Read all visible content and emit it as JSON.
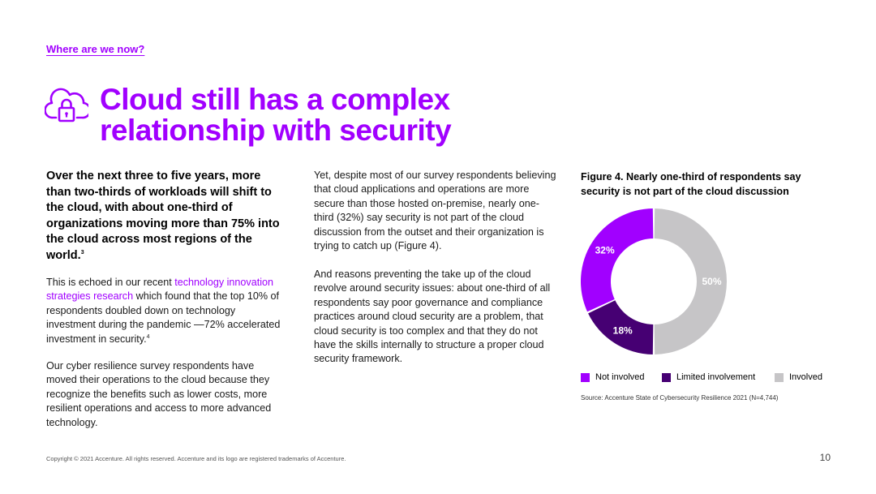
{
  "header": {
    "section_link": "Where are we now?",
    "title_line1": "Cloud still has a complex",
    "title_line2": "relationship with security",
    "icon": "cloud-lock-icon"
  },
  "left_column": {
    "lead_text": "Over the next three to five years, more than two-thirds of workloads will shift to the cloud, with about one-third of organizations moving more than 75% into the cloud across most regions of the world.",
    "lead_footnote": "3",
    "para1_before": "This is echoed in our recent ",
    "para1_link": "technology innovation strategies research",
    "para1_after": " which found that the top 10% of respondents doubled down on technology investment during the pandemic —72% accelerated investment in security.",
    "para1_footnote": "4",
    "para2": "Our cyber resilience survey respondents have moved their operations to the cloud because they recognize the benefits such as lower costs, more resilient operations and access to more advanced technology."
  },
  "middle_column": {
    "para1": "Yet, despite most of our survey respondents believing that cloud applications and operations are more secure than those hosted on-premise, nearly one-third (32%) say security is not part of the cloud discussion from the outset and their organization is trying to catch up (Figure 4).",
    "para2": "And reasons preventing the take up of the cloud revolve around security issues: about one-third of all respondents say poor governance and compliance practices around cloud security are a problem, that cloud security is too complex and that they do not have the skills internally to structure a proper cloud security framework."
  },
  "figure": {
    "title": "Figure 4. Nearly one-third of respondents say security is not part of the cloud discussion",
    "source": "Source: Accenture State of Cybersecurity Resilience 2021 (N=4,744)"
  },
  "chart_data": {
    "type": "pie",
    "donut": true,
    "title": "Figure 4. Nearly one-third of respondents say security is not part of the cloud discussion",
    "categories": [
      "Not involved",
      "Limited involvement",
      "Involved"
    ],
    "values": [
      32,
      18,
      50
    ],
    "labels": [
      "32%",
      "18%",
      "50%"
    ],
    "colors": [
      "#a100ff",
      "#460073",
      "#c6c5c7"
    ],
    "legend_position": "bottom"
  },
  "footer": {
    "copyright": "Copyright © 2021 Accenture. All rights reserved. Accenture and its logo are registered trademarks of Accenture.",
    "page_number": "10"
  }
}
